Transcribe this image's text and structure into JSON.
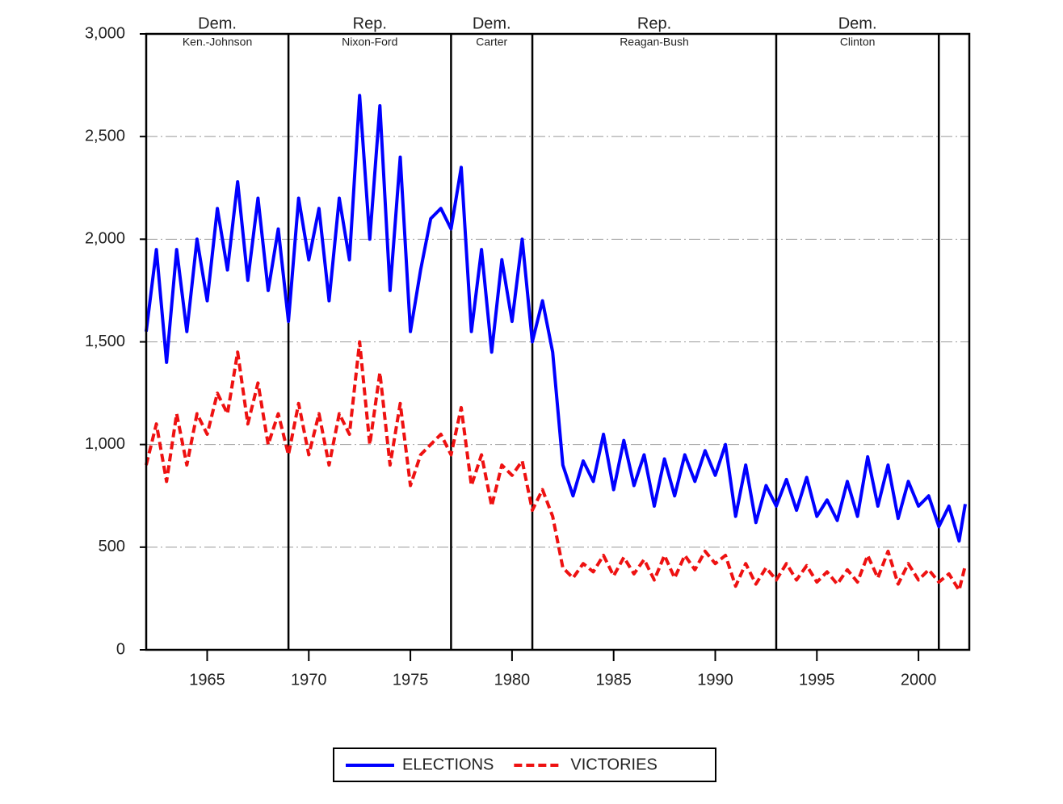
{
  "chart_data": {
    "type": "line",
    "x": [
      1962,
      1962.5,
      1963,
      1963.5,
      1964,
      1964.5,
      1965,
      1965.5,
      1966,
      1966.5,
      1967,
      1967.5,
      1968,
      1968.5,
      1969,
      1969.5,
      1970,
      1970.5,
      1971,
      1971.5,
      1972,
      1972.5,
      1973,
      1973.5,
      1974,
      1974.5,
      1975,
      1975.5,
      1976,
      1976.5,
      1977,
      1977.5,
      1978,
      1978.5,
      1979,
      1979.5,
      1980,
      1980.5,
      1981,
      1981.5,
      1982,
      1982.5,
      1983,
      1983.5,
      1984,
      1984.5,
      1985,
      1985.5,
      1986,
      1986.5,
      1987,
      1987.5,
      1988,
      1988.5,
      1989,
      1989.5,
      1990,
      1990.5,
      1991,
      1991.5,
      1992,
      1992.5,
      1993,
      1993.5,
      1994,
      1994.5,
      1995,
      1995.5,
      1996,
      1996.5,
      1997,
      1997.5,
      1998,
      1998.5,
      1999,
      1999.5,
      2000,
      2000.5,
      2001,
      2001.5,
      2002,
      2002.3
    ],
    "series": [
      {
        "name": "ELECTIONS",
        "color": "#0000ff",
        "dashed": false,
        "values": [
          1550,
          1950,
          1400,
          1950,
          1550,
          2000,
          1700,
          2150,
          1850,
          2280,
          1800,
          2200,
          1750,
          2050,
          1600,
          2200,
          1900,
          2150,
          1700,
          2200,
          1900,
          2700,
          2000,
          2650,
          1750,
          2400,
          1550,
          1850,
          2100,
          2150,
          2050,
          2350,
          1550,
          1950,
          1450,
          1900,
          1600,
          2000,
          1500,
          1700,
          1450,
          900,
          750,
          920,
          820,
          1050,
          780,
          1020,
          800,
          950,
          700,
          930,
          750,
          950,
          820,
          970,
          850,
          1000,
          650,
          900,
          620,
          800,
          700,
          830,
          680,
          840,
          650,
          730,
          630,
          820,
          650,
          940,
          700,
          900,
          640,
          820,
          700,
          750,
          600,
          700,
          530,
          710
        ]
      },
      {
        "name": "VICTORIES",
        "color": "#ee1111",
        "dashed": true,
        "values": [
          900,
          1100,
          820,
          1150,
          900,
          1150,
          1050,
          1250,
          1150,
          1450,
          1100,
          1300,
          1000,
          1150,
          950,
          1200,
          950,
          1150,
          900,
          1150,
          1050,
          1500,
          1000,
          1350,
          900,
          1200,
          800,
          950,
          1000,
          1050,
          950,
          1180,
          800,
          950,
          700,
          900,
          850,
          920,
          680,
          780,
          650,
          400,
          350,
          420,
          380,
          460,
          360,
          450,
          370,
          440,
          340,
          460,
          350,
          460,
          390,
          480,
          420,
          460,
          310,
          420,
          320,
          400,
          340,
          420,
          340,
          410,
          330,
          380,
          320,
          390,
          330,
          460,
          350,
          480,
          320,
          420,
          340,
          390,
          330,
          370,
          290,
          410
        ]
      }
    ],
    "xlim": [
      1962,
      2002.5
    ],
    "xticks": [
      1965,
      1970,
      1975,
      1980,
      1985,
      1990,
      1995,
      2000
    ],
    "ylim": [
      0,
      3000
    ],
    "yticks": [
      0,
      500,
      {
        "value": 1000,
        "label": "1,000"
      },
      {
        "value": 1500,
        "label": "1,500"
      },
      {
        "value": 2000,
        "label": "2,000"
      },
      {
        "value": 2500,
        "label": "2,500"
      },
      {
        "value": 3000,
        "label": "3,000"
      }
    ],
    "grid": true,
    "dividers": [
      1969,
      1977,
      1981,
      1993,
      2001
    ],
    "periods": [
      {
        "party": "Dem.",
        "name": "Ken.-Johnson"
      },
      {
        "party": "Rep.",
        "name": "Nixon-Ford"
      },
      {
        "party": "Dem.",
        "name": "Carter"
      },
      {
        "party": "Rep.",
        "name": "Reagan-Bush"
      },
      {
        "party": "Dem.",
        "name": "Clinton"
      }
    ],
    "legend": "bottom"
  }
}
